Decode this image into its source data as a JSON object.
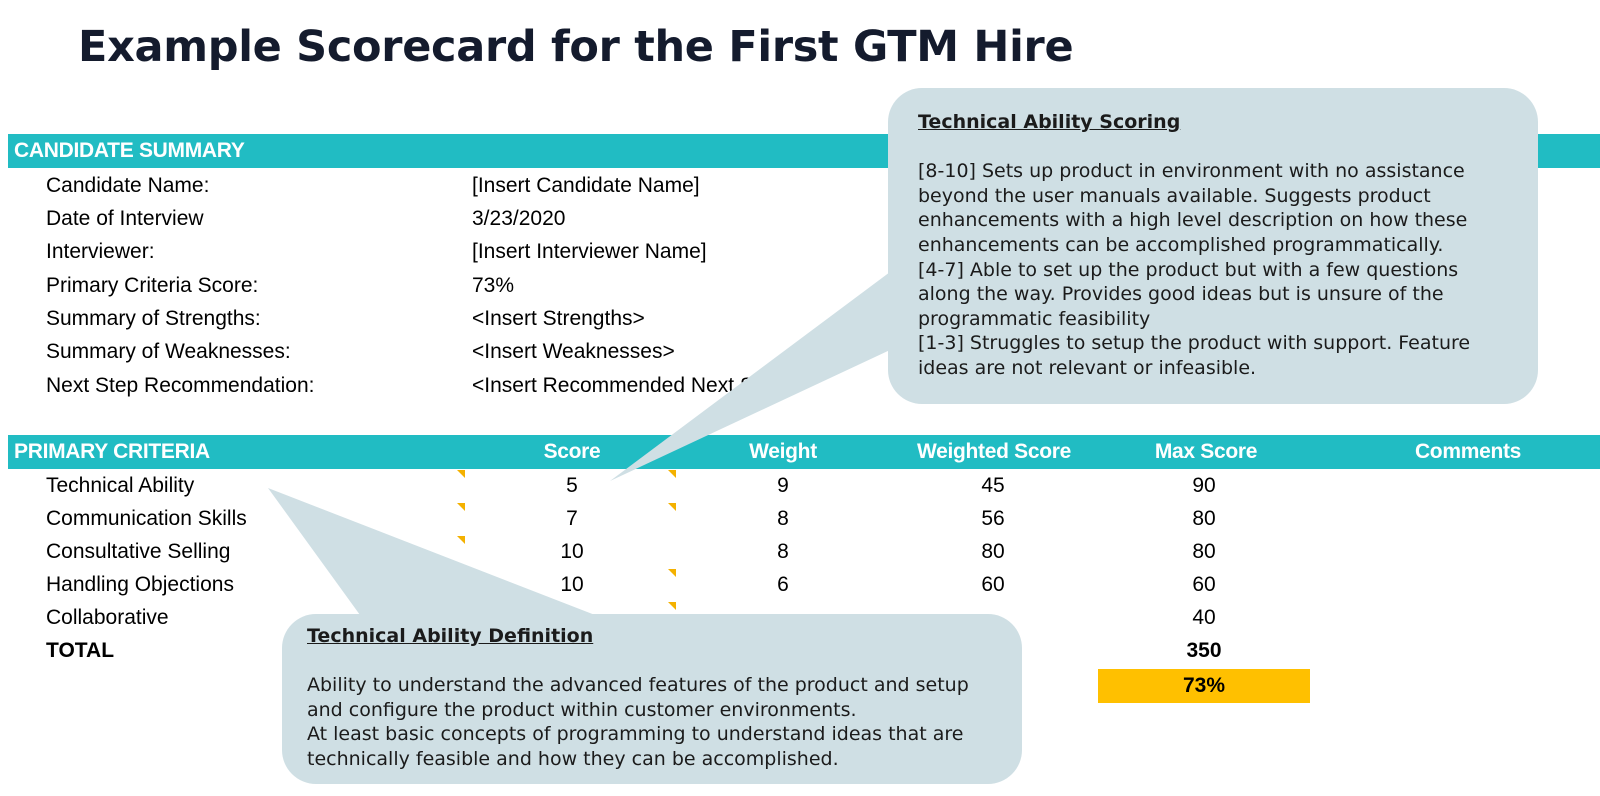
{
  "title": "Example Scorecard for the First GTM Hire",
  "candidate_summary": {
    "header": "CANDIDATE SUMMARY",
    "rows": [
      {
        "label": "Candidate Name:",
        "value": "[Insert Candidate Name]"
      },
      {
        "label": "Date of Interview",
        "value": "3/23/2020"
      },
      {
        "label": "Interviewer:",
        "value": "[Insert Interviewer Name]"
      },
      {
        "label": "Primary Criteria Score:",
        "value": "73%"
      },
      {
        "label": "Summary of Strengths:",
        "value": "<Insert Strengths>"
      },
      {
        "label": "Summary of Weaknesses:",
        "value": "<Insert Weaknesses>"
      },
      {
        "label": "Next Step Recommendation:",
        "value": "<Insert Recommended Next Steps>"
      }
    ]
  },
  "primary_criteria": {
    "header": "PRIMARY CRITERIA",
    "columns": [
      "Score",
      "Weight",
      "Weighted Score",
      "Max Score",
      "Comments"
    ],
    "rows": [
      {
        "label": "Technical Ability",
        "score": "5",
        "weight": "9",
        "weighted": "45",
        "max": "90"
      },
      {
        "label": "Communication Skills",
        "score": "7",
        "weight": "8",
        "weighted": "56",
        "max": "80"
      },
      {
        "label": "Consultative Selling",
        "score": "10",
        "weight": "8",
        "weighted": "80",
        "max": "80"
      },
      {
        "label": "Handling Objections",
        "score": "10",
        "weight": "6",
        "weighted": "60",
        "max": "60"
      },
      {
        "label": "Collaborative",
        "score": "",
        "weight": "",
        "weighted": "",
        "max": "40"
      }
    ],
    "total_label": "TOTAL",
    "total_max": "350",
    "total_pct": "73%"
  },
  "callout_scoring": {
    "heading": "Technical Ability Scoring",
    "lines": [
      "[8-10] Sets up product in environment with no assistance",
      "beyond the user manuals available.  Suggests product",
      "enhancements with a high level description on how these",
      "enhancements can be accomplished programmatically.",
      "[4-7] Able to set up the product but with a few questions",
      "along the way.  Provides good ideas but is unsure of the",
      "programmatic feasibility",
      "[1-3] Struggles to setup the product with support.  Feature",
      "ideas are not relevant or infeasible."
    ]
  },
  "callout_definition": {
    "heading": "Technical Ability Definition",
    "lines": [
      "Ability to understand the advanced features of the product and setup",
      "and configure the product within customer environments.",
      "At least basic concepts of programming to understand ideas that are",
      "technically feasible and how they can be accomplished."
    ]
  },
  "colors": {
    "band": "#21bcc3",
    "highlight": "#ffc000",
    "callout": "#cfdfe4",
    "comment_flag": "#f4b100"
  }
}
